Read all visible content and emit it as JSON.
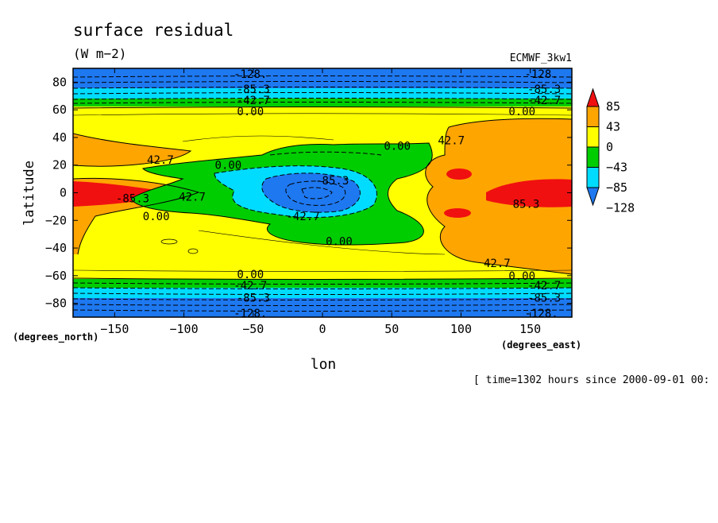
{
  "chart_data": {
    "type": "heatmap",
    "title": "surface residual",
    "units": "(W m−2)",
    "dataset": "ECMWF_3kw1",
    "xlabel": "lon",
    "ylabel": "latitude",
    "x_units": "(degrees_east)",
    "y_units": "(degrees_north)",
    "time_label": "[ time=1302 hours since 2000-09-01 00:",
    "xlim": [
      -180,
      180
    ],
    "ylim": [
      -90,
      90
    ],
    "x_ticks": [
      -150,
      -100,
      -50,
      0,
      50,
      100,
      150
    ],
    "x_tick_labels": [
      "−150",
      "−100",
      "−50",
      "0",
      "50",
      "100",
      "150"
    ],
    "y_ticks": [
      80,
      60,
      40,
      20,
      0,
      -20,
      -40,
      -60,
      -80
    ],
    "y_tick_labels": [
      "80",
      "60",
      "40",
      "20",
      "0",
      "−20",
      "−40",
      "−60",
      "−80"
    ],
    "colorbar": {
      "levels": [
        -128,
        -85,
        -43,
        0,
        43,
        85
      ],
      "labels": [
        "−128",
        "−85",
        "−43",
        "0",
        "43",
        "85"
      ],
      "colors": [
        "#1e78f0",
        "#00dcff",
        "#00cd00",
        "#ffff00",
        "#ffa500",
        "#f01010"
      ],
      "extend": "both"
    },
    "contour_labels": [
      {
        "text": "-128.",
        "lon": -52,
        "lat": 86
      },
      {
        "text": "-128.",
        "lon": 158,
        "lat": 86
      },
      {
        "text": "-85.3",
        "lon": -50,
        "lat": 75
      },
      {
        "text": "-85.3",
        "lon": 160,
        "lat": 75
      },
      {
        "text": "-42.7",
        "lon": -50,
        "lat": 67
      },
      {
        "text": "-42.7",
        "lon": 160,
        "lat": 67
      },
      {
        "text": "0.00",
        "lon": -52,
        "lat": 59
      },
      {
        "text": "0.00",
        "lon": 144,
        "lat": 59
      },
      {
        "text": "42.7",
        "lon": -117,
        "lat": 24
      },
      {
        "text": "0.00",
        "lon": -68,
        "lat": 20
      },
      {
        "text": "0.00",
        "lon": 54,
        "lat": 34
      },
      {
        "text": "42.7",
        "lon": 93,
        "lat": 38
      },
      {
        "text": "-85.3",
        "lon": 7,
        "lat": 9
      },
      {
        "text": "-85.3",
        "lon": -137,
        "lat": -4
      },
      {
        "text": "42.7",
        "lon": -94,
        "lat": -3
      },
      {
        "text": "-42.7",
        "lon": -14,
        "lat": -17
      },
      {
        "text": "0.00",
        "lon": -120,
        "lat": -17
      },
      {
        "text": "0.00",
        "lon": 12,
        "lat": -35
      },
      {
        "text": "85.3",
        "lon": 147,
        "lat": -8
      },
      {
        "text": "42.7",
        "lon": 126,
        "lat": -51
      },
      {
        "text": "0.00",
        "lon": -52,
        "lat": -59
      },
      {
        "text": "0.00",
        "lon": 144,
        "lat": -60
      },
      {
        "text": "-42.7",
        "lon": -52,
        "lat": -67
      },
      {
        "text": "-42.7",
        "lon": 160,
        "lat": -67
      },
      {
        "text": "-85.3",
        "lon": -50,
        "lat": -76
      },
      {
        "text": "-85.3",
        "lon": 160,
        "lat": -76
      },
      {
        "text": "-128.",
        "lon": -52,
        "lat": -87
      },
      {
        "text": "-128.",
        "lon": 158,
        "lat": -87
      }
    ]
  }
}
